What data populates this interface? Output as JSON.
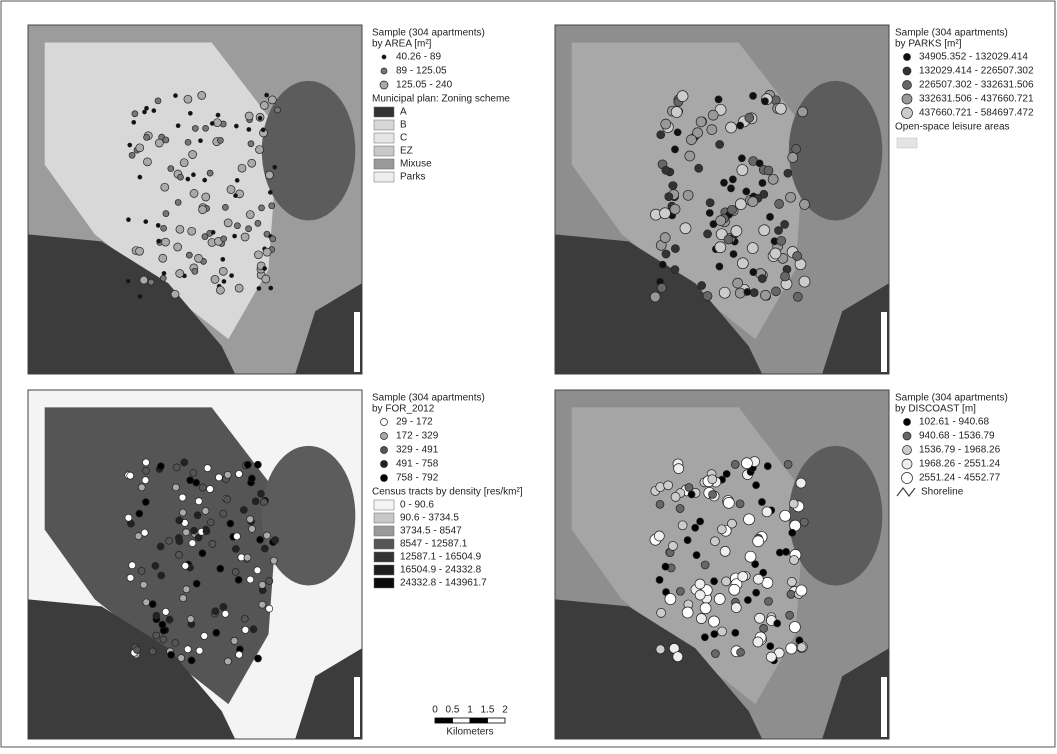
{
  "panels": [
    {
      "legend_title": [
        "Sample (304 apartments)",
        "by AREA [m²]"
      ],
      "classes": [
        "40.26 - 89",
        "89 - 125.05",
        "125.05 - 240"
      ],
      "layer_title": "Municipal plan: Zoning scheme",
      "layer_classes": [
        "A",
        "B",
        "C",
        "EZ",
        "Mixuse",
        "Parks"
      ]
    },
    {
      "legend_title": [
        "Sample (304 apartments)",
        "by PARKS [m²]"
      ],
      "classes": [
        "34905.352 - 132029.414",
        "132029.414 - 226507.302",
        "226507.302 - 332631.506",
        "332631.506 - 437660.721",
        "437660.721 - 584697.472"
      ],
      "layer_title": "Open-space leisure areas"
    },
    {
      "legend_title": [
        "Sample (304 apartments)",
        "by FOR_2012"
      ],
      "classes": [
        "29 - 172",
        "172 - 329",
        "329 - 491",
        "491 - 758",
        "758 - 792"
      ],
      "layer_title": "Census tracts by density [res/km²]",
      "layer_classes": [
        "0 - 90.6",
        "90.6 - 3734.5",
        "3734.5 - 8547",
        "8547 - 12587.1",
        "12587.1 - 16504.9",
        "16504.9 - 24332.8",
        "24332.8 - 143961.7"
      ]
    },
    {
      "legend_title": [
        "Sample (304 apartments)",
        "by DISCOAST [m]"
      ],
      "classes": [
        "102.61 - 940.68",
        "940.68 - 1536.79",
        "1536.79 - 1968.26",
        "1968.26 - 2551.24",
        "2551.24 - 4552.77"
      ],
      "layer_title": "Shoreline"
    }
  ],
  "scale_bar": {
    "ticks": [
      "0",
      "0.5",
      "1",
      "1.5",
      "2"
    ],
    "unit": "Kilometers"
  }
}
